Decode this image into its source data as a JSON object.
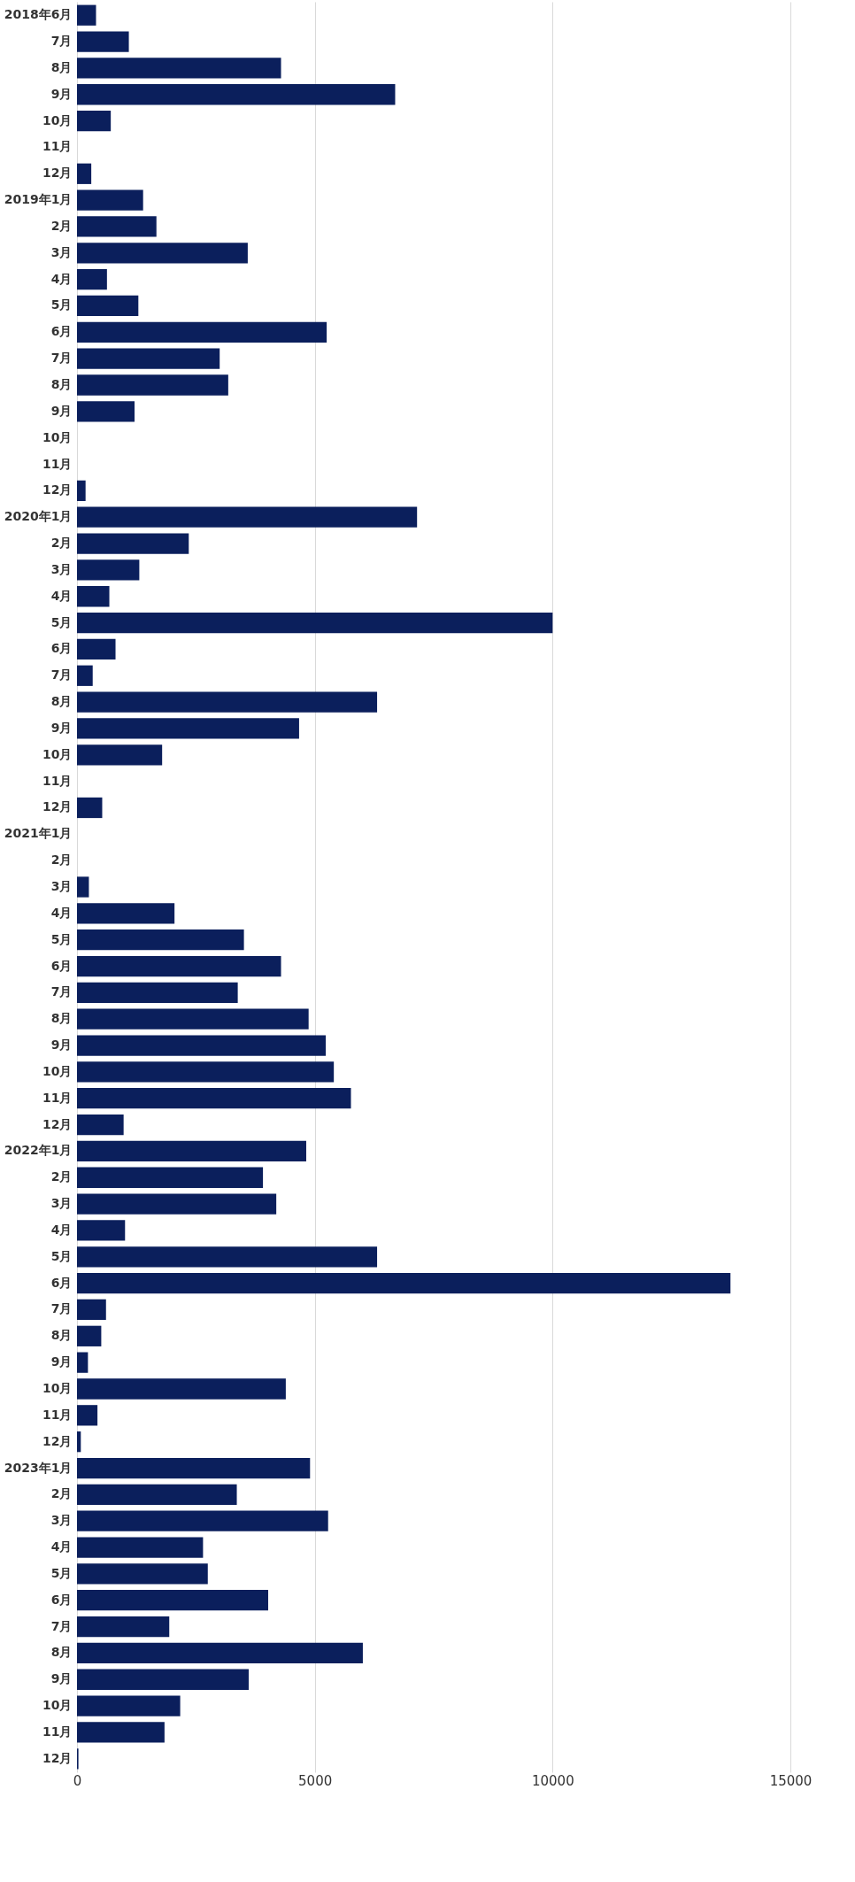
{
  "chart_data": {
    "type": "bar",
    "orientation": "horizontal",
    "categories": [
      "2018年6月",
      "7月",
      "8月",
      "9月",
      "10月",
      "11月",
      "12月",
      "2019年1月",
      "2月",
      "3月",
      "4月",
      "5月",
      "6月",
      "7月",
      "8月",
      "9月",
      "10月",
      "11月",
      "12月",
      "2020年1月",
      "2月",
      "3月",
      "4月",
      "5月",
      "6月",
      "7月",
      "8月",
      "9月",
      "10月",
      "11月",
      "12月",
      "2021年1月",
      "2月",
      "3月",
      "4月",
      "5月",
      "6月",
      "7月",
      "8月",
      "9月",
      "10月",
      "11月",
      "12月",
      "2022年1月",
      "2月",
      "3月",
      "4月",
      "5月",
      "6月",
      "7月",
      "8月",
      "9月",
      "10月",
      "11月",
      "12月",
      "2023年1月",
      "2月",
      "3月",
      "4月",
      "5月",
      "6月",
      "7月",
      "8月",
      "9月",
      "10月",
      "11月",
      "12月"
    ],
    "values": [
      400,
      1090,
      4290,
      6690,
      710,
      0,
      300,
      1390,
      1670,
      3590,
      630,
      1290,
      5250,
      3000,
      3180,
      1210,
      0,
      0,
      180,
      7150,
      2350,
      1310,
      680,
      10000,
      810,
      330,
      6310,
      4670,
      1790,
      0,
      530,
      0,
      0,
      250,
      2050,
      3510,
      4290,
      3380,
      4870,
      5230,
      5400,
      5760,
      980,
      4820,
      3910,
      4190,
      1010,
      6310,
      13740,
      610,
      510,
      230,
      4390,
      430,
      80,
      4900,
      3360,
      5280,
      2650,
      2750,
      4020,
      1940,
      6010,
      3610,
      2170,
      1840,
      30
    ],
    "color": "#0b1f5c",
    "xlim": [
      0,
      15000
    ],
    "xticks": [
      0,
      5000,
      10000,
      15000
    ],
    "grid": "x"
  }
}
